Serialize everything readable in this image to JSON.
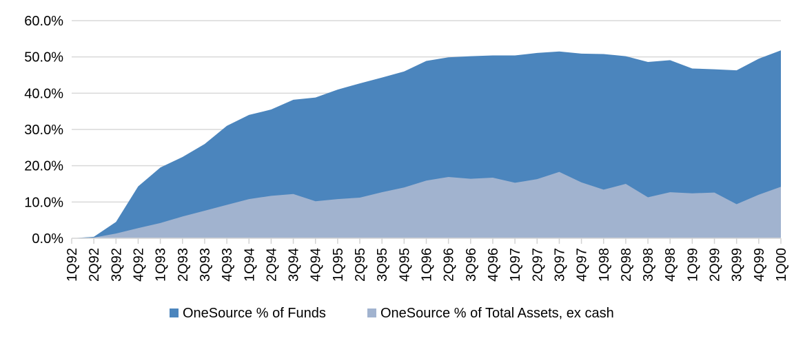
{
  "chart_data": {
    "type": "area",
    "title": "",
    "xlabel": "",
    "ylabel": "",
    "categories": [
      "1Q92",
      "2Q92",
      "3Q92",
      "4Q92",
      "1Q93",
      "2Q93",
      "3Q93",
      "4Q93",
      "1Q94",
      "2Q94",
      "3Q94",
      "4Q94",
      "1Q95",
      "2Q95",
      "3Q95",
      "4Q95",
      "1Q96",
      "2Q96",
      "3Q96",
      "4Q96",
      "1Q97",
      "2Q97",
      "3Q97",
      "4Q97",
      "1Q98",
      "2Q98",
      "3Q98",
      "4Q98",
      "1Q99",
      "2Q99",
      "3Q99",
      "4Q99",
      "1Q00"
    ],
    "series": [
      {
        "name": "OneSource % of Funds",
        "color": "#4B85BD",
        "values": [
          0.0,
          0.4,
          4.5,
          14.3,
          19.5,
          22.4,
          26.0,
          31.0,
          34.0,
          35.5,
          38.2,
          38.8,
          41.0,
          42.7,
          44.3,
          46.0,
          48.9,
          49.9,
          50.2,
          50.4,
          50.4,
          51.1,
          51.5,
          50.9,
          50.8,
          50.2,
          48.6,
          49.1,
          46.8,
          46.6,
          46.3,
          49.5,
          51.8
        ]
      },
      {
        "name": "OneSource % of Total Assets, ex cash",
        "color": "#A1B3CF",
        "values": [
          0.0,
          0.2,
          1.3,
          2.8,
          4.2,
          6.0,
          7.6,
          9.2,
          10.8,
          11.7,
          12.2,
          10.2,
          10.8,
          11.2,
          12.7,
          14.0,
          15.9,
          16.9,
          16.4,
          16.7,
          15.3,
          16.3,
          18.3,
          15.4,
          13.4,
          15.0,
          11.3,
          12.7,
          12.4,
          12.6,
          9.4,
          12.0,
          14.2
        ]
      }
    ],
    "ylim": [
      0,
      60
    ],
    "ytick_step": 10,
    "ytick_labels": [
      "0.0%",
      "10.0%",
      "20.0%",
      "30.0%",
      "40.0%",
      "50.0%",
      "60.0%"
    ],
    "grid": "horizontal",
    "legend_position": "bottom",
    "colors": {
      "gridline": "#D9D9D9",
      "tick": "#D2D2D2",
      "text": "#000000",
      "background": "#FFFFFF"
    }
  }
}
